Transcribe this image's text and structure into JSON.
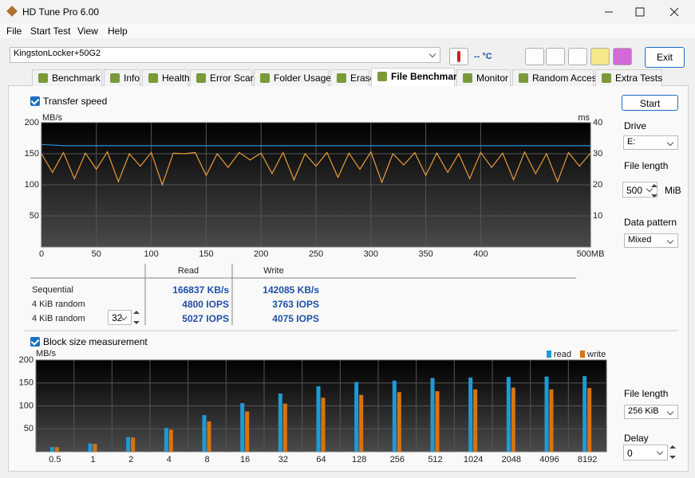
{
  "window": {
    "title": "HD Tune Pro 6.00"
  },
  "menu": [
    "File",
    "Start Test",
    "View",
    "Help"
  ],
  "toolbar": {
    "drive": "KingstonLocker+50G2",
    "temperature": "-- °C",
    "exit": "Exit"
  },
  "tabs": [
    "Benchmark",
    "Info",
    "Health",
    "Error Scan",
    "Folder Usage",
    "Erase",
    "File Benchmark",
    "Monitor",
    "Random Access",
    "Extra Tests"
  ],
  "transfer": {
    "checkbox": "Transfer speed",
    "y_label": "MB/s",
    "y2_label": "ms",
    "xlim": [
      0,
      500
    ],
    "xticks": [
      0,
      50,
      100,
      150,
      200,
      250,
      300,
      350,
      400,
      {
        "value": 500,
        "label": "500MB"
      }
    ],
    "ylim": [
      0,
      200
    ],
    "yticks": [
      50,
      100,
      150,
      200
    ],
    "y2lim": [
      0,
      40
    ],
    "y2ticks": [
      10,
      20,
      30,
      40
    ],
    "x": [
      0,
      10,
      20,
      30,
      40,
      50,
      60,
      70,
      80,
      90,
      100,
      110,
      120,
      130,
      140,
      150,
      160,
      170,
      180,
      190,
      200,
      210,
      220,
      230,
      240,
      250,
      260,
      270,
      280,
      290,
      300,
      310,
      320,
      330,
      340,
      350,
      360,
      370,
      380,
      390,
      400,
      410,
      420,
      430,
      440,
      450,
      460,
      470,
      480,
      490,
      500
    ],
    "series": [
      {
        "name": "read",
        "color": "#2a8fd8",
        "values": [
          165,
          164,
          163,
          163,
          163,
          163,
          163,
          163,
          163,
          163,
          163,
          163,
          163,
          163,
          163,
          163,
          163,
          163,
          163,
          163,
          163,
          163,
          163,
          163,
          163,
          163,
          163,
          163,
          163,
          163,
          163,
          163,
          163,
          163,
          163,
          163,
          163,
          163,
          163,
          163,
          163,
          163,
          163,
          163,
          163,
          163,
          163,
          163,
          163,
          163,
          163
        ]
      },
      {
        "name": "write",
        "color": "#e89a3c",
        "values": [
          150,
          120,
          152,
          110,
          151,
          125,
          153,
          105,
          150,
          130,
          152,
          100,
          151,
          150,
          152,
          115,
          150,
          128,
          152,
          140,
          151,
          118,
          152,
          108,
          150,
          130,
          152,
          112,
          151,
          125,
          153,
          104,
          150,
          132,
          152,
          115,
          151,
          120,
          150,
          110,
          152,
          128,
          151,
          108,
          153,
          118,
          150,
          105,
          152,
          130,
          151
        ]
      }
    ]
  },
  "results": {
    "headers": [
      "Read",
      "Write"
    ],
    "rows": [
      [
        "Sequential",
        "166837 KB/s",
        "142085 KB/s"
      ],
      [
        "4 KiB random",
        "4800 IOPS",
        "3763 IOPS"
      ],
      [
        "4 KiB random",
        "5027 IOPS",
        "4075 IOPS"
      ]
    ],
    "queue_depth": "32"
  },
  "block": {
    "checkbox": "Block size measurement",
    "y_label": "MB/s",
    "ylim": [
      0,
      200
    ],
    "yticks": [
      50,
      100,
      150,
      200
    ],
    "categories": [
      "0.5",
      "1",
      "2",
      "4",
      "8",
      "16",
      "32",
      "64",
      "128",
      "256",
      "512",
      "1024",
      "2048",
      "4096",
      "8192"
    ],
    "series": [
      {
        "name": "read",
        "color": "#1e9ad6",
        "values": [
          10,
          18,
          32,
          52,
          80,
          106,
          127,
          143,
          152,
          155,
          161,
          162,
          163,
          164,
          165
        ]
      },
      {
        "name": "write",
        "color": "#d9730d",
        "values": [
          10,
          17,
          31,
          48,
          66,
          88,
          105,
          118,
          124,
          130,
          132,
          136,
          140,
          136,
          139
        ]
      }
    ]
  },
  "side": {
    "start": "Start",
    "drive_label": "Drive",
    "drive": "E:",
    "file_length_label": "File length",
    "file_length": "500",
    "file_length_unit": "MiB",
    "pattern_label": "Data pattern",
    "pattern": "Mixed",
    "block_length_label": "File length",
    "block_length": "256 KiB",
    "delay_label": "Delay",
    "delay": "0"
  }
}
